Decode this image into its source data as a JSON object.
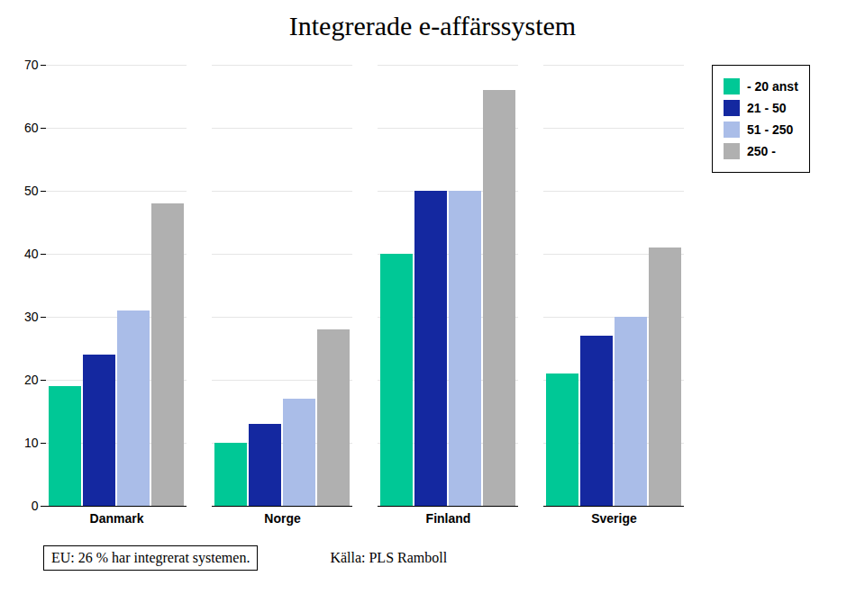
{
  "chart_data": {
    "type": "bar",
    "title": "Integrerade e-affärssystem",
    "categories": [
      "Danmark",
      "Norge",
      "Finland",
      "Sverige"
    ],
    "series": [
      {
        "name": "- 20 anst",
        "color": "#00C896",
        "values": [
          19,
          10,
          40,
          21
        ]
      },
      {
        "name": "21 - 50",
        "color": "#1428A0",
        "values": [
          24,
          13,
          50,
          27
        ]
      },
      {
        "name": "51 - 250",
        "color": "#AABDE8",
        "values": [
          31,
          17,
          50,
          30
        ]
      },
      {
        "name": "250 -",
        "color": "#B0B0B0",
        "values": [
          48,
          28,
          66,
          41
        ]
      }
    ],
    "ylim": [
      0,
      70
    ],
    "yticks": [
      0,
      10,
      20,
      30,
      40,
      50,
      60,
      70
    ],
    "grid": true,
    "legend": "right",
    "annotations": [
      "EU: 26 % har integrerat systemen.",
      "Källa: PLS Ramboll"
    ]
  }
}
